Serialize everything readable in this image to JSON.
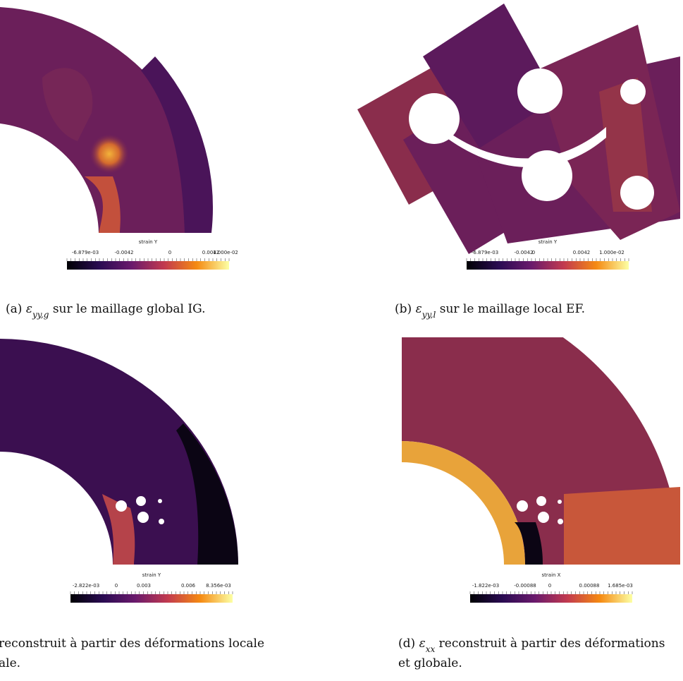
{
  "figures": [
    {
      "label": "(a)",
      "symbol": "ε",
      "subscript": "yy,g",
      "caption_lines": [
        "sur le maillage global IG."
      ],
      "colorbar": {
        "title": "strain Y",
        "ticks": [
          "-6.879e-03",
          "-0.0042",
          "0",
          "0.0042",
          "1.000e-02"
        ]
      }
    },
    {
      "label": "(b)",
      "symbol": "ε",
      "subscript": "yy,l",
      "caption_lines": [
        "sur le maillage local EF."
      ],
      "colorbar": {
        "title": "strain Y",
        "ticks": [
          "-6.879e-03",
          "-0.0042",
          "0",
          "0.0042",
          "1.000e-02"
        ]
      }
    },
    {
      "caption_lines": [
        "reconstruit à partir des déformations locale",
        "ale."
      ],
      "colorbar": {
        "title": "strain Y",
        "ticks": [
          "-2.822e-03",
          "0",
          "0.003",
          "0.006",
          "8.356e-03"
        ]
      }
    },
    {
      "label": "(d)",
      "symbol": "ε",
      "subscript": "xx",
      "caption_lines": [
        "reconstruit à partir des déformations",
        "et globale."
      ],
      "colorbar": {
        "title": "strain X",
        "ticks": [
          "-1.822e-03",
          "-0.00088",
          "0",
          "0.00088",
          "1.685e-03"
        ]
      }
    }
  ]
}
